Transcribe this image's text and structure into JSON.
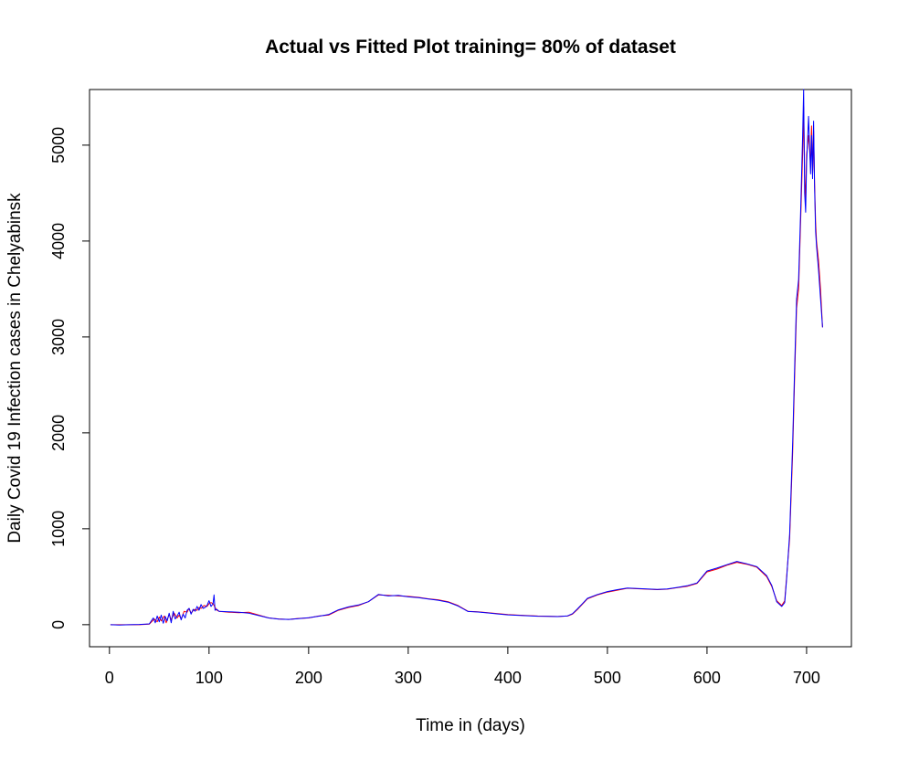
{
  "chart_data": {
    "type": "line",
    "title": "Actual vs Fitted Plot training= 80% of dataset",
    "xlabel": "Time in (days)",
    "ylabel": "Daily Covid 19 Infection cases in Chelyabinsk",
    "xlim": [
      -20,
      745
    ],
    "ylim": [
      -230,
      5580
    ],
    "xticks": [
      0,
      100,
      200,
      300,
      400,
      500,
      600,
      700
    ],
    "yticks": [
      0,
      1000,
      2000,
      3000,
      4000,
      5000
    ],
    "grid": false,
    "legend": "none",
    "series": [
      {
        "color": "#FF0000",
        "x": [
          1,
          10,
          20,
          30,
          40,
          45,
          48,
          50,
          52,
          55,
          57,
          60,
          62,
          65,
          68,
          70,
          72,
          75,
          78,
          80,
          82,
          85,
          88,
          90,
          92,
          95,
          98,
          100,
          102,
          104,
          106,
          108,
          110,
          120,
          130,
          140,
          150,
          160,
          170,
          180,
          190,
          200,
          210,
          220,
          230,
          240,
          250,
          260,
          270,
          280,
          290,
          300,
          310,
          320,
          330,
          340,
          350,
          360,
          370,
          380,
          390,
          400,
          410,
          420,
          430,
          440,
          450,
          460,
          465,
          470,
          480,
          490,
          500,
          510,
          520,
          530,
          540,
          550,
          560,
          570,
          580,
          590,
          600,
          610,
          620,
          630,
          640,
          650,
          660,
          665,
          670,
          675,
          678,
          680,
          683,
          686,
          688,
          690,
          692,
          694,
          696,
          697,
          698,
          699,
          700,
          702,
          704,
          705,
          706,
          707,
          708,
          709,
          710,
          712,
          714,
          716
        ],
        "y": [
          0,
          0,
          0,
          0,
          5,
          60,
          30,
          80,
          40,
          90,
          20,
          110,
          50,
          120,
          70,
          100,
          60,
          140,
          130,
          170,
          120,
          160,
          150,
          180,
          170,
          200,
          190,
          220,
          230,
          220,
          180,
          150,
          140,
          130,
          125,
          130,
          100,
          70,
          60,
          55,
          65,
          70,
          90,
          100,
          150,
          180,
          200,
          240,
          310,
          305,
          300,
          295,
          285,
          270,
          260,
          240,
          200,
          140,
          135,
          125,
          115,
          105,
          100,
          95,
          90,
          88,
          85,
          90,
          110,
          160,
          270,
          310,
          340,
          360,
          380,
          375,
          370,
          365,
          370,
          385,
          400,
          430,
          550,
          580,
          620,
          650,
          630,
          600,
          500,
          400,
          250,
          200,
          250,
          500,
          900,
          1800,
          2600,
          3300,
          3500,
          4200,
          4900,
          5400,
          4700,
          4400,
          4900,
          5100,
          4800,
          5200,
          4700,
          5150,
          4600,
          4200,
          4000,
          3800,
          3500,
          3100
        ]
      },
      {
        "color": "#0000FF",
        "x": [
          1,
          10,
          20,
          30,
          40,
          44,
          46,
          48,
          50,
          52,
          54,
          56,
          58,
          60,
          62,
          64,
          66,
          68,
          70,
          72,
          74,
          76,
          78,
          80,
          82,
          84,
          86,
          88,
          90,
          92,
          94,
          96,
          98,
          100,
          102,
          104,
          105,
          106,
          108,
          110,
          120,
          130,
          140,
          150,
          160,
          170,
          180,
          190,
          200,
          210,
          220,
          230,
          240,
          250,
          260,
          270,
          280,
          290,
          300,
          310,
          320,
          330,
          340,
          350,
          360,
          370,
          380,
          390,
          400,
          410,
          420,
          430,
          440,
          450,
          460,
          465,
          470,
          480,
          490,
          500,
          510,
          520,
          530,
          540,
          550,
          560,
          570,
          580,
          590,
          600,
          610,
          620,
          630,
          640,
          650,
          660,
          665,
          670,
          675,
          678,
          680,
          683,
          686,
          688,
          690,
          692,
          694,
          696,
          697,
          698,
          699,
          700,
          702,
          704,
          705,
          706,
          707,
          708,
          709,
          710,
          712,
          714,
          716
        ],
        "y": [
          0,
          -3,
          0,
          2,
          8,
          70,
          20,
          90,
          30,
          100,
          15,
          85,
          40,
          120,
          20,
          140,
          60,
          90,
          130,
          50,
          110,
          70,
          150,
          170,
          110,
          160,
          140,
          190,
          150,
          210,
          170,
          180,
          200,
          250,
          190,
          220,
          310,
          150,
          160,
          140,
          135,
          130,
          120,
          95,
          70,
          58,
          55,
          62,
          72,
          88,
          105,
          155,
          185,
          205,
          240,
          315,
          300,
          305,
          290,
          282,
          268,
          255,
          235,
          195,
          138,
          132,
          122,
          112,
          102,
          98,
          93,
          88,
          86,
          84,
          92,
          115,
          165,
          275,
          315,
          345,
          365,
          382,
          378,
          372,
          368,
          372,
          388,
          405,
          435,
          560,
          590,
          625,
          660,
          635,
          605,
          510,
          410,
          240,
          190,
          230,
          480,
          950,
          1900,
          2700,
          3400,
          3600,
          4300,
          5100,
          5600,
          4500,
          4300,
          4800,
          5300,
          4700,
          5100,
          4650,
          5250,
          4550,
          4100,
          3950,
          3700,
          3400,
          3100
        ]
      }
    ]
  }
}
